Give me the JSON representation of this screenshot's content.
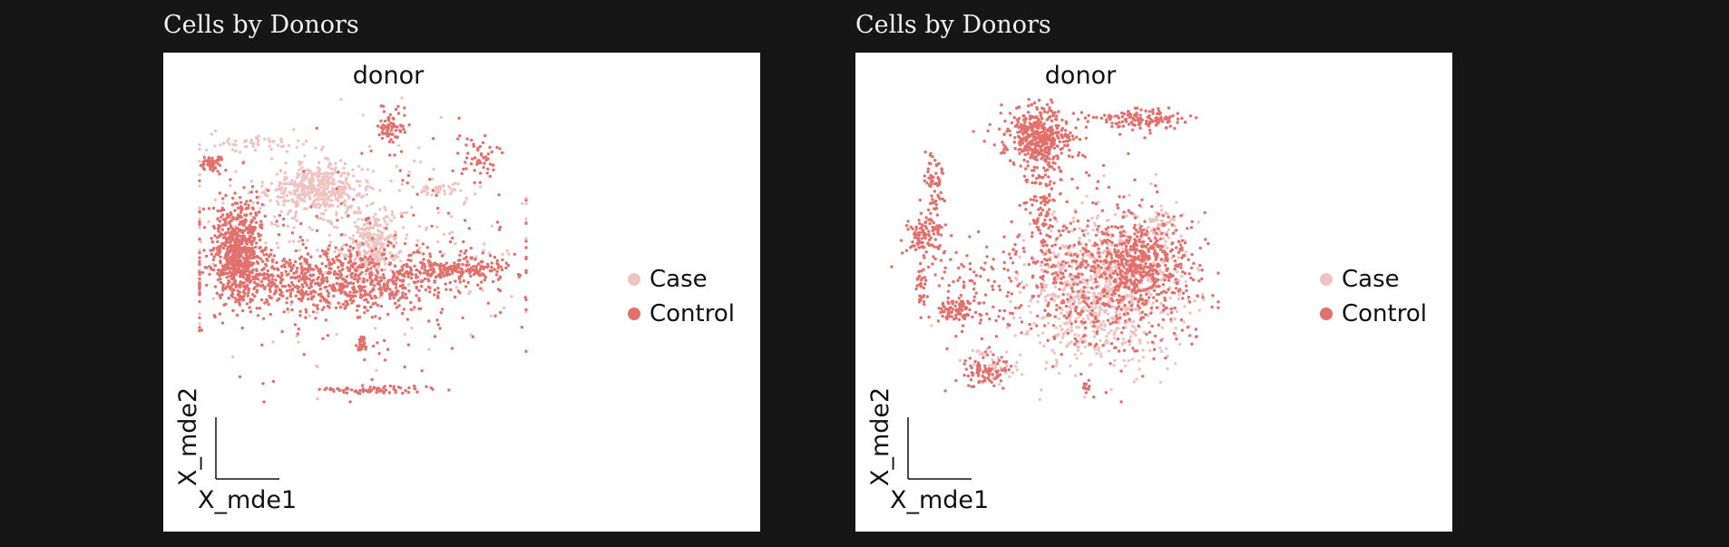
{
  "colors": {
    "background": "#161616",
    "case": "#efc3c1",
    "control": "#e2706c"
  },
  "panels": [
    {
      "title": "Cells by Donors",
      "plot_title": "donor",
      "x_axis_label": "X_mde1",
      "y_axis_label": "X_mde2",
      "legend": [
        {
          "label": "Case",
          "color": "#efc3c1"
        },
        {
          "label": "Control",
          "color": "#e2706c"
        }
      ]
    },
    {
      "title": "Cells by Donors",
      "plot_title": "donor",
      "x_axis_label": "X_mde1",
      "y_axis_label": "X_mde2",
      "legend": [
        {
          "label": "Case",
          "color": "#efc3c1"
        },
        {
          "label": "Control",
          "color": "#e2706c"
        }
      ]
    }
  ],
  "chart_data": [
    {
      "type": "scatter",
      "title": "donor",
      "xlabel": "X_mde1",
      "ylabel": "X_mde2",
      "xlim": [
        0,
        100
      ],
      "ylim": [
        0,
        100
      ],
      "categories": [
        "Case",
        "Control"
      ],
      "clusters": [
        {
          "category": "Control",
          "cx": 12,
          "cy": 50,
          "sx": 4,
          "sy": 8,
          "n": 650
        },
        {
          "category": "Control",
          "cx": 42,
          "cy": 40,
          "sx": 20,
          "sy": 5,
          "n": 800
        },
        {
          "category": "Control",
          "cx": 80,
          "cy": 44,
          "sx": 8,
          "sy": 2,
          "n": 160
        },
        {
          "category": "Case",
          "cx": 36,
          "cy": 70,
          "sx": 7,
          "sy": 4,
          "n": 420
        },
        {
          "category": "Case",
          "cx": 53,
          "cy": 52,
          "sx": 4,
          "sy": 6,
          "n": 280
        },
        {
          "category": "Case",
          "cx": 20,
          "cy": 85,
          "sx": 8,
          "sy": 1.5,
          "n": 50
        },
        {
          "category": "Control",
          "cx": 4,
          "cy": 78,
          "sx": 1.5,
          "sy": 1.5,
          "n": 50
        },
        {
          "category": "Control",
          "cx": 59,
          "cy": 90,
          "sx": 2,
          "sy": 3,
          "n": 70
        },
        {
          "category": "Control",
          "cx": 86,
          "cy": 80,
          "sx": 3,
          "sy": 4,
          "n": 50
        },
        {
          "category": "Case",
          "cx": 74,
          "cy": 70,
          "sx": 4,
          "sy": 1,
          "n": 40
        },
        {
          "category": "Control",
          "cx": 50,
          "cy": 19,
          "sx": 1.2,
          "sy": 1.5,
          "n": 25
        },
        {
          "category": "Control",
          "cx": 53,
          "cy": 4,
          "sx": 8,
          "sy": 0.6,
          "n": 70
        },
        {
          "category": "Case",
          "cx": 45,
          "cy": 55,
          "sx": 30,
          "sy": 18,
          "n": 220
        },
        {
          "category": "Control",
          "cx": 45,
          "cy": 45,
          "sx": 32,
          "sy": 18,
          "n": 220
        }
      ]
    },
    {
      "type": "scatter",
      "title": "donor",
      "xlabel": "X_mde1",
      "ylabel": "X_mde2",
      "xlim": [
        0,
        100
      ],
      "ylim": [
        0,
        100
      ],
      "categories": [
        "Case",
        "Control"
      ],
      "clusters": [
        {
          "category": "Control",
          "cx": 45,
          "cy": 87,
          "sx": 5,
          "sy": 5,
          "n": 450
        },
        {
          "category": "Control",
          "cx": 76,
          "cy": 93,
          "sx": 8,
          "sy": 2,
          "n": 140
        },
        {
          "category": "Control",
          "cx": 46,
          "cy": 65,
          "sx": 3,
          "sy": 12,
          "n": 130
        },
        {
          "category": "Control",
          "cx": 30,
          "cy": 38,
          "sx": 10,
          "sy": 8,
          "n": 100
        },
        {
          "category": "Control",
          "cx": 20,
          "cy": 30,
          "sx": 3,
          "sy": 2,
          "n": 80
        },
        {
          "category": "Control",
          "cx": 10,
          "cy": 55,
          "sx": 3,
          "sy": 4,
          "n": 110
        },
        {
          "category": "Control",
          "cx": 13,
          "cy": 72,
          "sx": 1.5,
          "sy": 5,
          "n": 60
        },
        {
          "category": "Control",
          "cx": 9,
          "cy": 38,
          "sx": 0.8,
          "sy": 4,
          "n": 30
        },
        {
          "category": "Control",
          "cx": 28,
          "cy": 10,
          "sx": 4,
          "sy": 3,
          "n": 90
        },
        {
          "category": "Control",
          "cx": 60,
          "cy": 5,
          "sx": 0.8,
          "sy": 0.8,
          "n": 10
        },
        {
          "category": "Case",
          "cx": 65,
          "cy": 36,
          "sx": 12,
          "sy": 12,
          "n": 800
        },
        {
          "category": "Control",
          "cx": 67,
          "cy": 40,
          "sx": 14,
          "sy": 13,
          "n": 600
        },
        {
          "category": "Control",
          "cx": 77,
          "cy": 45,
          "sx": 6,
          "sy": 6,
          "n": 300
        },
        {
          "category": "Case",
          "cx": 82,
          "cy": 58,
          "sx": 3,
          "sy": 3,
          "n": 60
        },
        {
          "category": "Case",
          "cx": 30,
          "cy": 11,
          "sx": 4,
          "sy": 3,
          "n": 40
        }
      ]
    }
  ]
}
